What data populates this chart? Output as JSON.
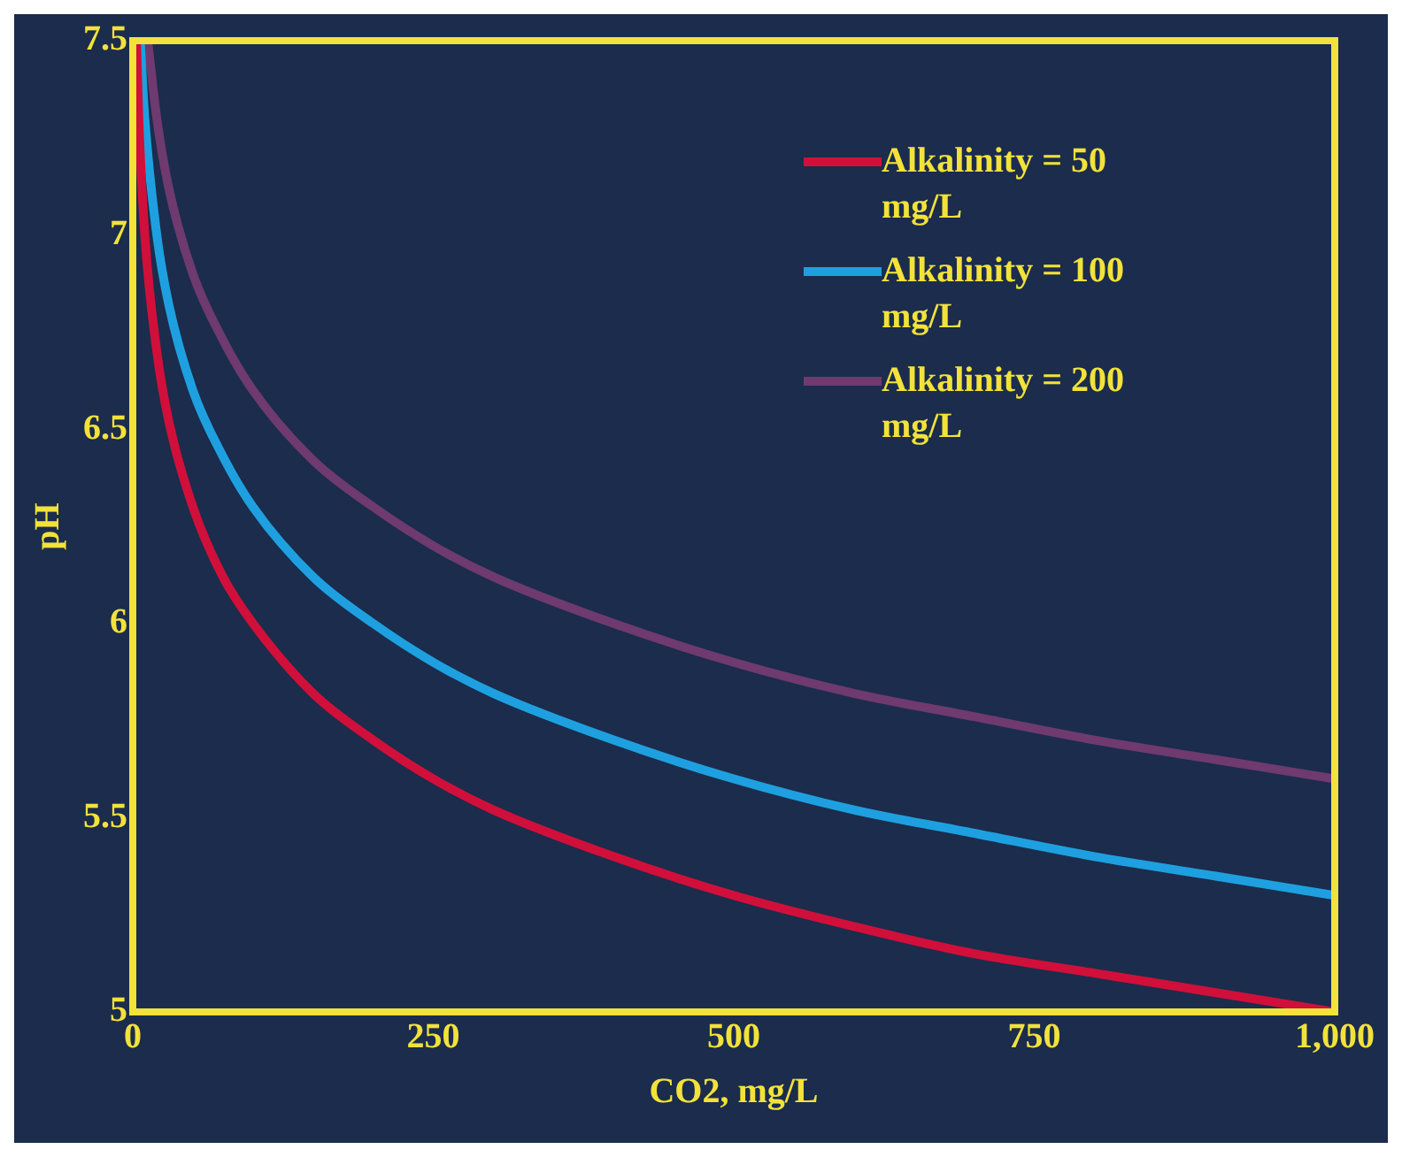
{
  "chart_data": {
    "type": "line",
    "xlabel": "CO2, mg/L",
    "ylabel": "pH",
    "xlim": [
      0,
      1000
    ],
    "xticks": [
      0,
      250,
      500,
      750,
      {
        "value": 1000,
        "label": "1,000"
      }
    ],
    "ylim": [
      5,
      7.5
    ],
    "yticks": [
      5,
      5.5,
      6,
      6.5,
      7,
      7.5
    ],
    "grid": false,
    "legend": "top right",
    "marker": "none",
    "line_style": "solid",
    "series": [
      {
        "name": "Alkalinity = 50 mg/L",
        "color": "#d0103a",
        "x": [
          3.2,
          5,
          10,
          20,
          30,
          50,
          75,
          100,
          150,
          200,
          250,
          300,
          400,
          500,
          600,
          700,
          800,
          900,
          1000
        ],
        "values": [
          7.49,
          7.3,
          7.0,
          6.7,
          6.52,
          6.3,
          6.12,
          6.0,
          5.82,
          5.7,
          5.6,
          5.52,
          5.4,
          5.3,
          5.22,
          5.15,
          5.1,
          5.05,
          5.0
        ]
      },
      {
        "name": "Alkalinity = 100 mg/L",
        "color": "#1ea0e0",
        "x": [
          6.4,
          10,
          20,
          30,
          50,
          75,
          100,
          150,
          200,
          250,
          300,
          400,
          500,
          600,
          700,
          800,
          900,
          1000
        ],
        "values": [
          7.49,
          7.3,
          7.0,
          6.82,
          6.6,
          6.43,
          6.3,
          6.12,
          6.0,
          5.9,
          5.82,
          5.7,
          5.6,
          5.52,
          5.46,
          5.4,
          5.35,
          5.3
        ]
      },
      {
        "name": "Alkalinity = 200 mg/L",
        "color": "#6e3a70",
        "x": [
          12.8,
          20,
          30,
          50,
          75,
          100,
          150,
          200,
          250,
          300,
          400,
          500,
          600,
          700,
          800,
          900,
          1000
        ],
        "values": [
          7.49,
          7.3,
          7.12,
          6.9,
          6.73,
          6.6,
          6.42,
          6.3,
          6.2,
          6.12,
          6.0,
          5.9,
          5.82,
          5.76,
          5.7,
          5.65,
          5.6
        ]
      }
    ]
  }
}
